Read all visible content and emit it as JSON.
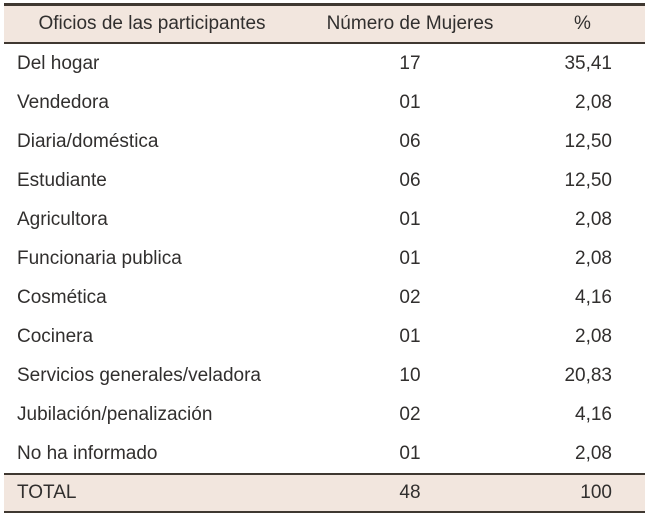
{
  "chart_data": {
    "type": "table",
    "columns": [
      "Oficios de las participantes",
      "Número de Mujeres",
      "%"
    ],
    "rows": [
      [
        "Del hogar",
        "17",
        "35,41"
      ],
      [
        "Vendedora",
        "01",
        "2,08"
      ],
      [
        "Diaria/doméstica",
        "06",
        "12,50"
      ],
      [
        "Estudiante",
        "06",
        "12,50"
      ],
      [
        "Agricultora",
        "01",
        "2,08"
      ],
      [
        "Funcionaria publica",
        "01",
        "2,08"
      ],
      [
        "Cosmética",
        "02",
        "4,16"
      ],
      [
        "Cocinera",
        "01",
        "2,08"
      ],
      [
        "Servicios generales/veladora",
        "10",
        "20,83"
      ],
      [
        "Jubilación/penalización",
        "02",
        "4,16"
      ],
      [
        "No ha informado",
        "01",
        "2,08"
      ]
    ],
    "total_row": [
      "TOTAL",
      "48",
      "100"
    ],
    "layout_hints": {
      "header_fill": true,
      "total_fill": true,
      "body_row_separators": false
    }
  },
  "colors": {
    "header_bg": "#f2e6de",
    "rule_dark": "#3f3831",
    "text": "#312f2e"
  }
}
